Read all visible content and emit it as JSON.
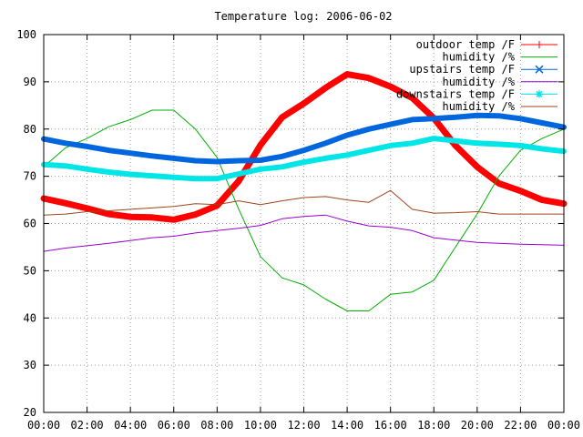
{
  "chart_data": {
    "type": "line",
    "title": "Temperature log: 2006-06-02",
    "xlabel": "",
    "ylabel": "",
    "xlim": [
      "00:00",
      "24:00"
    ],
    "ylim": [
      20,
      100
    ],
    "grid": true,
    "legend_position": "top-right",
    "x_tick_labels": [
      "00:00",
      "02:00",
      "04:00",
      "06:00",
      "08:00",
      "10:00",
      "12:00",
      "14:00",
      "16:00",
      "18:00",
      "20:00",
      "22:00",
      "00:00"
    ],
    "y_tick_labels": [
      "20",
      "30",
      "40",
      "50",
      "60",
      "70",
      "80",
      "90",
      "100"
    ],
    "x": [
      "00:00",
      "01:00",
      "02:00",
      "03:00",
      "04:00",
      "05:00",
      "06:00",
      "07:00",
      "08:00",
      "09:00",
      "10:00",
      "11:00",
      "12:00",
      "13:00",
      "14:00",
      "15:00",
      "16:00",
      "17:00",
      "18:00",
      "19:00",
      "20:00",
      "21:00",
      "22:00",
      "23:00",
      "24:00"
    ],
    "series": [
      {
        "name": "outdoor temp /F",
        "color": "#ff0000",
        "marker": "plus",
        "width": 7,
        "values": [
          65.3,
          64.3,
          63.2,
          62.0,
          61.4,
          61.3,
          60.8,
          61.9,
          63.8,
          69.0,
          76.6,
          82.5,
          85.4,
          88.7,
          91.6,
          90.8,
          89.0,
          86.6,
          82.3,
          76.5,
          72.0,
          68.5,
          66.9,
          65.0,
          64.2
        ]
      },
      {
        "name": "humidity /%",
        "color": "#00b000",
        "marker": "none",
        "width": 1,
        "values": [
          72.0,
          76.0,
          78.0,
          80.5,
          82.0,
          84.0,
          84.0,
          80.0,
          74.0,
          63.0,
          53.0,
          48.5,
          47.0,
          44.0,
          41.5,
          41.5,
          45.0,
          45.5,
          48.0,
          55.0,
          62.0,
          70.0,
          75.5,
          78.0,
          80.0
        ]
      },
      {
        "name": "upstairs temp /F",
        "color": "#0066dd",
        "marker": "cross",
        "width": 6,
        "values": [
          77.9,
          77.0,
          76.3,
          75.5,
          74.9,
          74.3,
          73.8,
          73.3,
          73.1,
          73.3,
          73.4,
          74.2,
          75.5,
          77.0,
          78.7,
          80.0,
          81.0,
          82.0,
          82.2,
          82.5,
          82.9,
          82.8,
          82.2,
          81.3,
          80.4
        ]
      },
      {
        "name": "humidity /%",
        "color": "#9900cc",
        "marker": "none",
        "width": 1,
        "values": [
          54.1,
          54.8,
          55.3,
          55.8,
          56.4,
          57.0,
          57.3,
          58.0,
          58.5,
          59.0,
          59.6,
          61.0,
          61.5,
          61.8,
          60.5,
          59.5,
          59.2,
          58.5,
          57.0,
          56.5,
          56.0,
          55.8,
          55.6,
          55.5,
          55.4
        ]
      },
      {
        "name": "downstairs temp /F",
        "color": "#00e6e6",
        "marker": "star",
        "width": 6,
        "values": [
          72.5,
          72.2,
          71.5,
          70.9,
          70.4,
          70.1,
          69.8,
          69.5,
          69.5,
          70.5,
          71.5,
          72.0,
          73.0,
          73.8,
          74.5,
          75.5,
          76.5,
          77.0,
          78.0,
          77.5,
          77.0,
          76.8,
          76.5,
          75.8,
          75.3
        ]
      },
      {
        "name": "humidity /%",
        "color": "#a0441a",
        "marker": "none",
        "width": 1,
        "values": [
          61.8,
          62.0,
          62.5,
          62.7,
          63.0,
          63.3,
          63.6,
          64.2,
          64.0,
          64.8,
          64.0,
          64.8,
          65.5,
          65.7,
          65.0,
          64.5,
          67.0,
          63.0,
          62.2,
          62.3,
          62.5,
          62.0,
          62.0,
          62.0,
          62.0
        ]
      }
    ]
  }
}
